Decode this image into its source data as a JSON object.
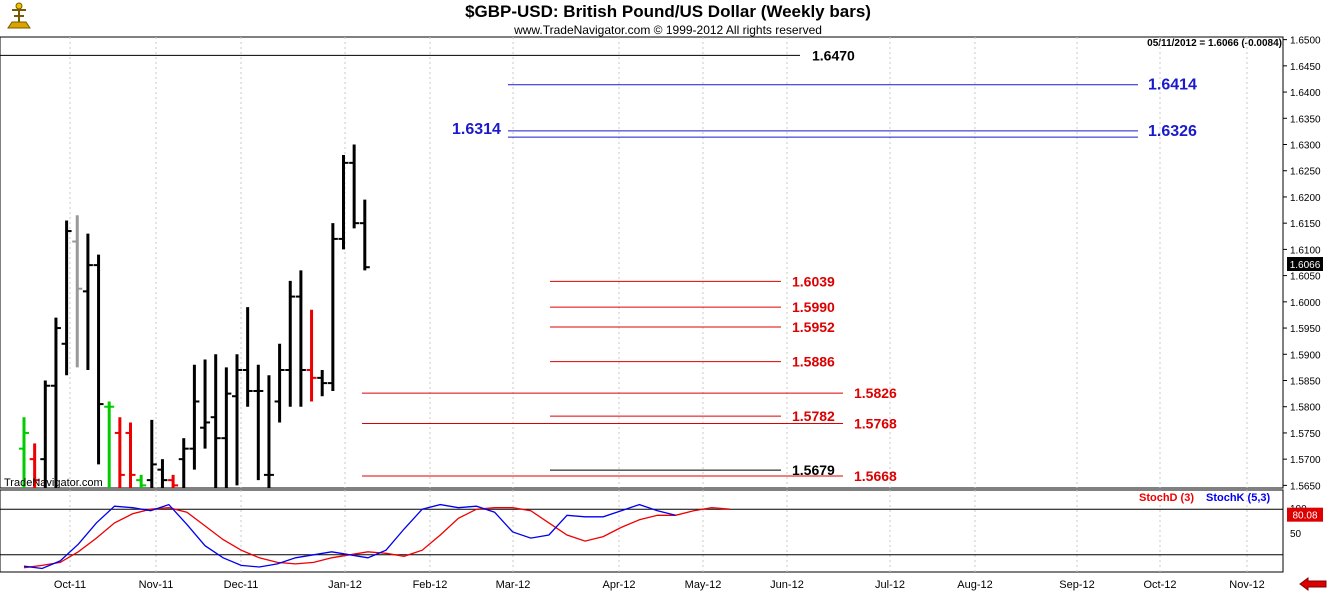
{
  "header": {
    "title": "$GBP-USD:  British Pound/US Dollar  (Weekly bars)",
    "subtitle": "www.TradeNavigator.com © 1999-2012 All rights reserved",
    "info": "05/11/2012 = 1.6066 (-0.0084)",
    "watermark": "TradeNavigator.com"
  },
  "icons": {
    "logo": "sextant-logo-icon",
    "nav": "red-left-arrow-icon"
  },
  "colors": {
    "up": "#00cc00",
    "down": "#ee0000",
    "neutral": "#000000",
    "gray": "#999999",
    "blue_level": "#1a1acc",
    "red_level": "#dd0000",
    "stoch_k": "#0000ee",
    "stoch_d": "#ee0000"
  },
  "chart_data": [
    {
      "type": "ohlc",
      "ylim": [
        1.5645,
        1.6505
      ],
      "y_ticks": [
        "1.6500",
        "1.6450",
        "1.6400",
        "1.6350",
        "1.6300",
        "1.6250",
        "1.6200",
        "1.6150",
        "1.6100",
        "1.6050",
        "1.6000",
        "1.5950",
        "1.5900",
        "1.5850",
        "1.5800",
        "1.5750",
        "1.5700",
        "1.5650"
      ],
      "x_labels": [
        "Oct-11",
        "Nov-11",
        "Dec-11",
        "Jan-12",
        "Feb-12",
        "Mar-12",
        "Apr-12",
        "May-12",
        "Jun-12",
        "Jul-12",
        "Aug-12",
        "Sep-12",
        "Oct-12",
        "Nov-12"
      ],
      "last_price": "1.6066",
      "bars": [
        {
          "h": 1.578,
          "l": 1.564,
          "o": 1.572,
          "c": 1.575,
          "col": "green"
        },
        {
          "h": 1.573,
          "l": 1.564,
          "o": 1.57,
          "c": 1.566,
          "col": "red"
        },
        {
          "h": 1.585,
          "l": 1.564,
          "o": 1.57,
          "c": 1.584,
          "col": "black"
        },
        {
          "h": 1.597,
          "l": 1.564,
          "o": 1.584,
          "c": 1.595,
          "col": "black"
        },
        {
          "h": 1.6155,
          "l": 1.586,
          "o": 1.592,
          "c": 1.6135,
          "col": "black"
        },
        {
          "h": 1.6165,
          "l": 1.5875,
          "o": 1.6115,
          "c": 1.6025,
          "col": "gray"
        },
        {
          "h": 1.613,
          "l": 1.587,
          "o": 1.602,
          "c": 1.607,
          "col": "black"
        },
        {
          "h": 1.609,
          "l": 1.569,
          "o": 1.607,
          "c": 1.5805,
          "col": "black"
        },
        {
          "h": 1.581,
          "l": 1.564,
          "o": 1.58,
          "c": 1.58,
          "col": "green"
        },
        {
          "h": 1.578,
          "l": 1.564,
          "o": 1.575,
          "c": 1.567,
          "col": "red"
        },
        {
          "h": 1.577,
          "l": 1.564,
          "o": 1.575,
          "c": 1.567,
          "col": "red"
        },
        {
          "h": 1.567,
          "l": 1.564,
          "o": 1.566,
          "c": 1.565,
          "col": "green"
        },
        {
          "h": 1.5775,
          "l": 1.564,
          "o": 1.566,
          "c": 1.569,
          "col": "black"
        },
        {
          "h": 1.57,
          "l": 1.564,
          "o": 1.568,
          "c": 1.566,
          "col": "black"
        },
        {
          "h": 1.567,
          "l": 1.564,
          "o": 1.566,
          "c": 1.565,
          "col": "red"
        },
        {
          "h": 1.574,
          "l": 1.564,
          "o": 1.57,
          "c": 1.572,
          "col": "black"
        },
        {
          "h": 1.588,
          "l": 1.568,
          "o": 1.572,
          "c": 1.581,
          "col": "black"
        },
        {
          "h": 1.589,
          "l": 1.572,
          "o": 1.576,
          "c": 1.577,
          "col": "black"
        },
        {
          "h": 1.59,
          "l": 1.564,
          "o": 1.578,
          "c": 1.574,
          "col": "black"
        },
        {
          "h": 1.5875,
          "l": 1.564,
          "o": 1.574,
          "c": 1.5825,
          "col": "black"
        },
        {
          "h": 1.59,
          "l": 1.565,
          "o": 1.582,
          "c": 1.587,
          "col": "black"
        },
        {
          "h": 1.599,
          "l": 1.58,
          "o": 1.587,
          "c": 1.583,
          "col": "black"
        },
        {
          "h": 1.588,
          "l": 1.566,
          "o": 1.583,
          "c": 1.583,
          "col": "black"
        },
        {
          "h": 1.586,
          "l": 1.564,
          "o": 1.567,
          "c": 1.567,
          "col": "black"
        },
        {
          "h": 1.592,
          "l": 1.577,
          "o": 1.581,
          "c": 1.587,
          "col": "black"
        },
        {
          "h": 1.604,
          "l": 1.58,
          "o": 1.587,
          "c": 1.601,
          "col": "black"
        },
        {
          "h": 1.606,
          "l": 1.58,
          "o": 1.601,
          "c": 1.587,
          "col": "black"
        },
        {
          "h": 1.5985,
          "l": 1.581,
          "o": 1.587,
          "c": 1.5855,
          "col": "red"
        },
        {
          "h": 1.587,
          "l": 1.582,
          "o": 1.5855,
          "c": 1.5845,
          "col": "black"
        },
        {
          "h": 1.615,
          "l": 1.583,
          "o": 1.5845,
          "c": 1.612,
          "col": "black"
        },
        {
          "h": 1.628,
          "l": 1.61,
          "o": 1.612,
          "c": 1.6265,
          "col": "black"
        },
        {
          "h": 1.63,
          "l": 1.614,
          "o": 1.6265,
          "c": 1.615,
          "col": "black"
        },
        {
          "h": 1.6195,
          "l": 1.606,
          "o": 1.615,
          "c": 1.6066,
          "col": "black"
        }
      ],
      "levels": [
        {
          "label": "1.6470",
          "value": 1.647,
          "color": "black",
          "x0": 0.0,
          "x1": 1.0
        },
        {
          "label": "1.6414",
          "value": 1.6414,
          "color": "blue",
          "x0": 0.4,
          "x1": 1.0
        },
        {
          "label": "1.6326",
          "value": 1.6326,
          "color": "blue",
          "x0": 0.4,
          "x1": 1.0
        },
        {
          "label": "1.6314",
          "value": 1.6314,
          "color": "blue",
          "x0": 0.4,
          "x1": 1.0
        },
        {
          "label": "1.6039",
          "value": 1.6039,
          "color": "red",
          "x0": 0.4,
          "x1": 1.0
        },
        {
          "label": "1.5990",
          "value": 1.599,
          "color": "red",
          "x0": 0.4,
          "x1": 1.0
        },
        {
          "label": "1.5952",
          "value": 1.5952,
          "color": "red",
          "x0": 0.4,
          "x1": 1.0
        },
        {
          "label": "1.5886",
          "value": 1.5886,
          "color": "red",
          "x0": 0.4,
          "x1": 1.0
        },
        {
          "label": "1.5826",
          "value": 1.5826,
          "color": "red",
          "x0": 0.0,
          "x1": 1.0
        },
        {
          "label": "1.5782",
          "value": 1.5782,
          "color": "red",
          "x0": 0.4,
          "x1": 1.0
        },
        {
          "label": "1.5768",
          "value": 1.5768,
          "color": "red",
          "x0": 0.0,
          "x1": 1.0
        },
        {
          "label": "1.5679",
          "value": 1.5679,
          "color": "black",
          "x0": 0.4,
          "x1": 1.0
        },
        {
          "label": "1.5668",
          "value": 1.5668,
          "color": "red",
          "x0": 0.0,
          "x1": 1.0
        }
      ]
    },
    {
      "type": "line",
      "ylim": [
        0,
        100
      ],
      "y_ticks": [
        "100",
        "50"
      ],
      "ref_lines": [
        80,
        20
      ],
      "last_value": "80.08",
      "series": [
        {
          "name": "StochD (3)",
          "color": "red",
          "values": [
            3,
            6,
            10,
            24,
            42,
            62,
            74,
            80,
            82,
            76,
            58,
            40,
            26,
            16,
            10,
            8,
            10,
            16,
            20,
            24,
            22,
            18,
            26,
            46,
            68,
            80,
            82,
            82,
            78,
            62,
            46,
            38,
            44,
            56,
            66,
            72,
            72,
            78,
            82,
            80
          ]
        },
        {
          "name": "StochK (5,3)",
          "color": "blue",
          "values": [
            5,
            2,
            12,
            34,
            62,
            84,
            82,
            78,
            86,
            60,
            32,
            16,
            6,
            4,
            8,
            16,
            20,
            24,
            20,
            16,
            26,
            54,
            80,
            86,
            82,
            84,
            76,
            50,
            42,
            46,
            72,
            70,
            70,
            78,
            86,
            78,
            72
          ]
        }
      ]
    }
  ]
}
